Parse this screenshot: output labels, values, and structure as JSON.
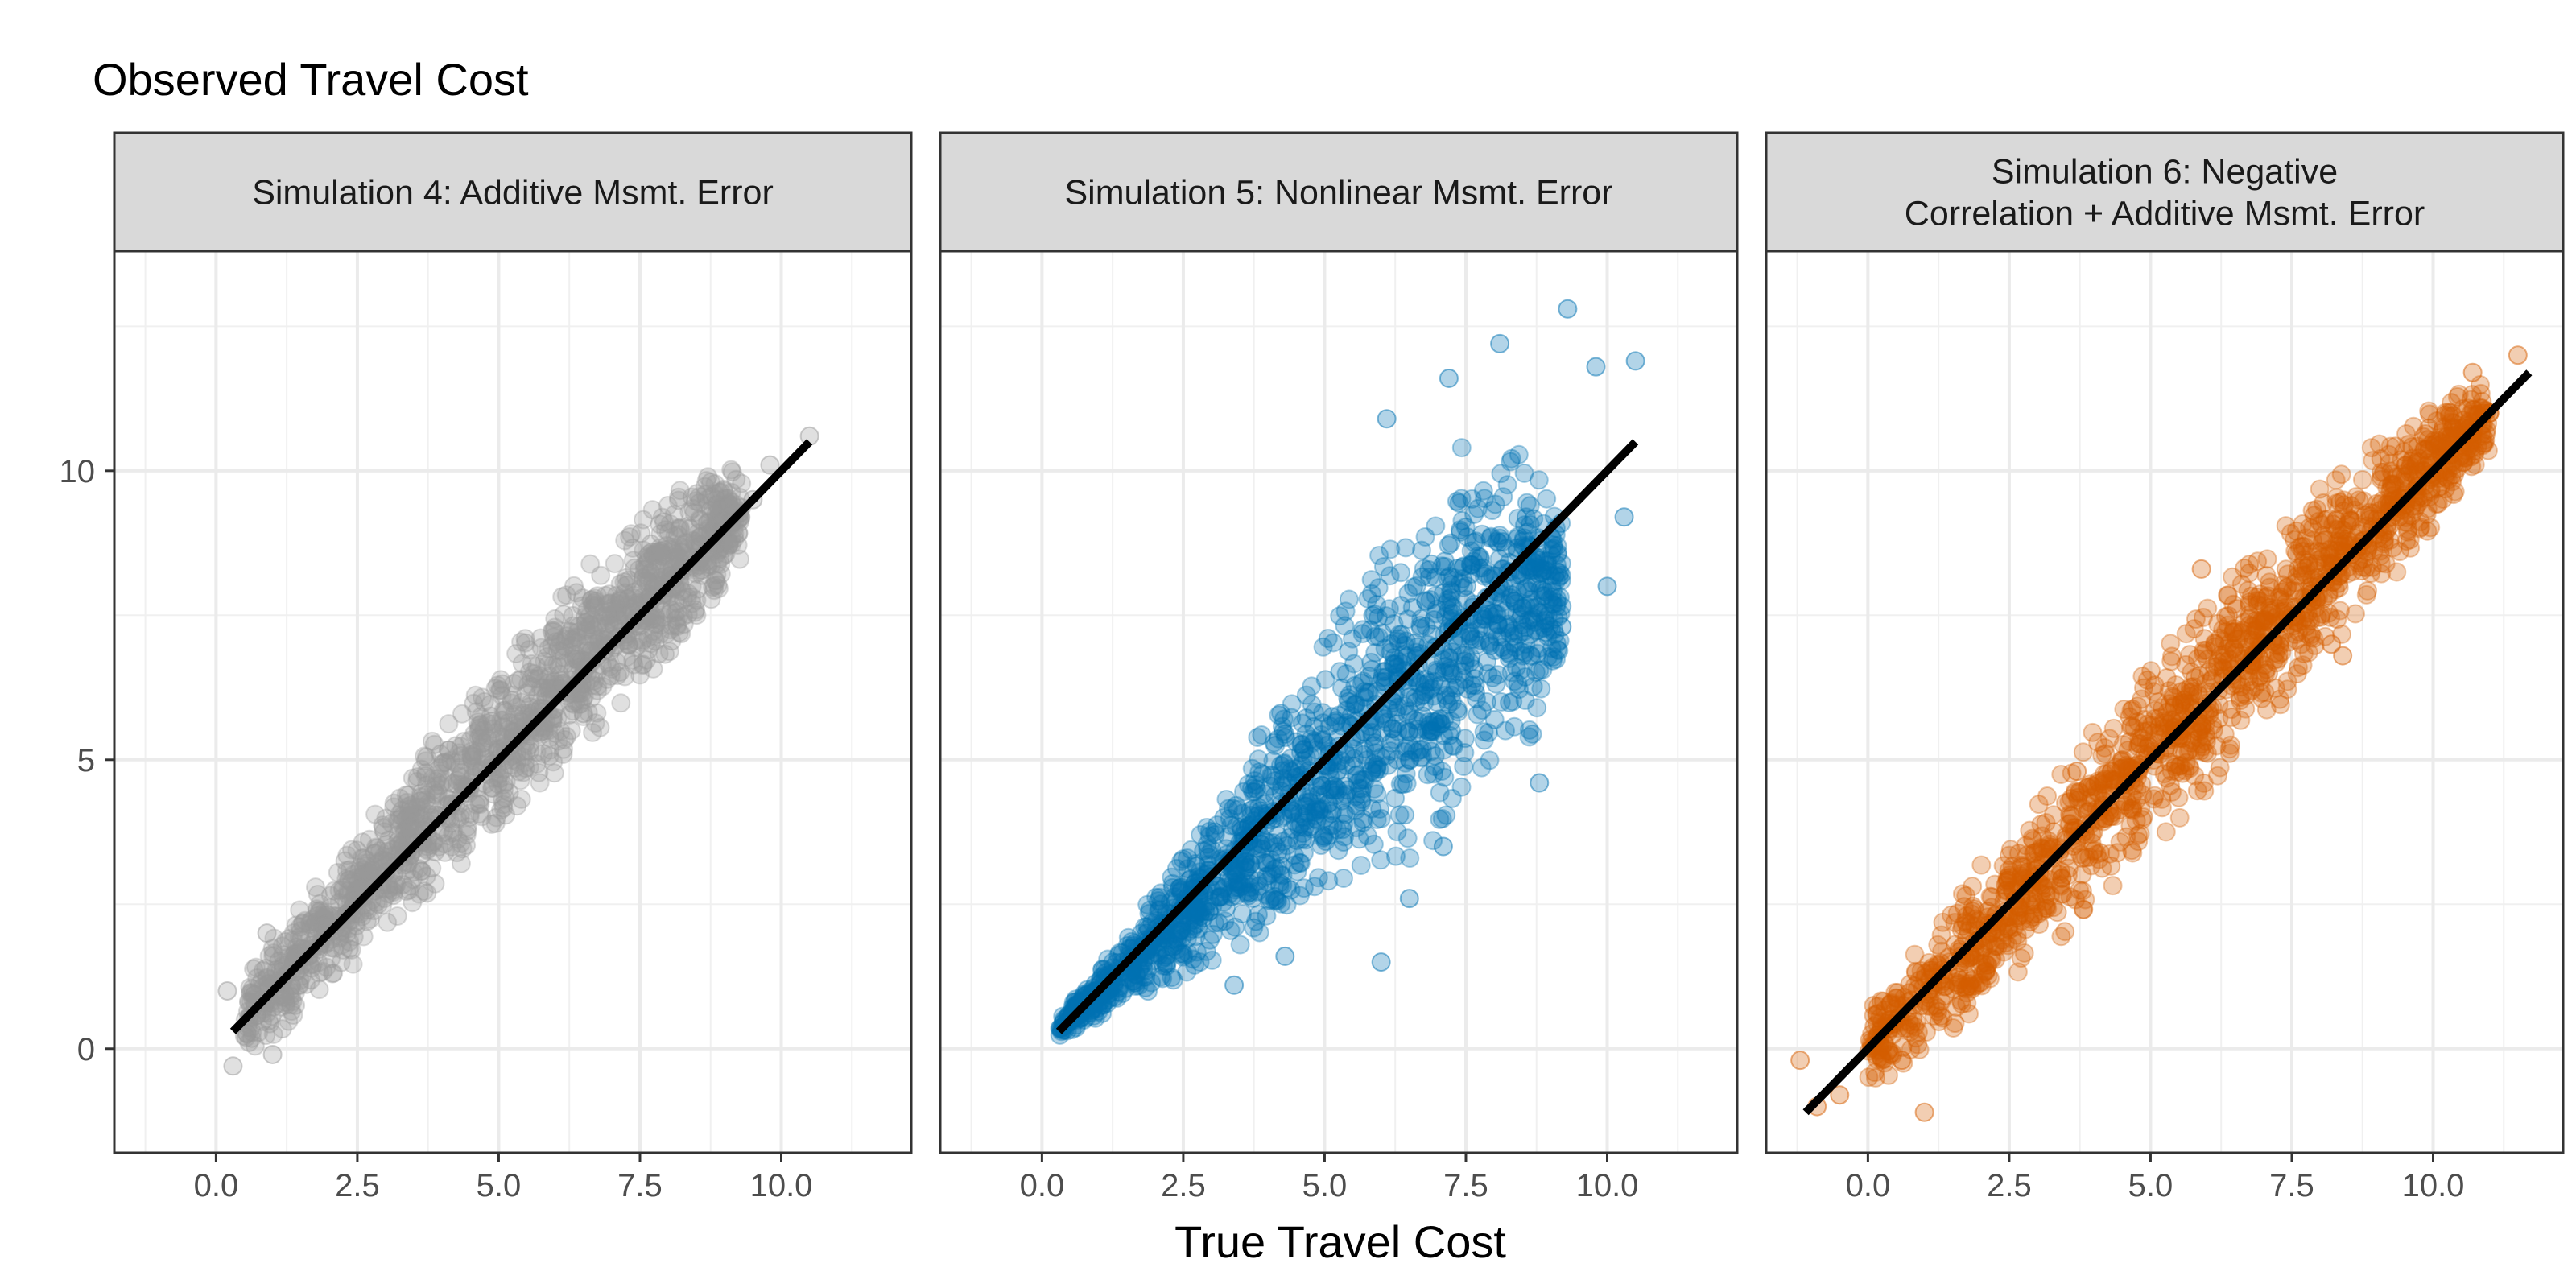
{
  "chart_data": {
    "type": "scatter",
    "y_axis_title": "Observed Travel Cost",
    "x_axis_title": "True Travel Cost",
    "xlim": [
      -1.8,
      12.3
    ],
    "ylim": [
      -1.8,
      13.8
    ],
    "x_ticks": [
      0.0,
      2.5,
      5.0,
      7.5,
      10.0
    ],
    "x_tick_labels": [
      "0.0",
      "2.5",
      "5.0",
      "7.5",
      "10.0"
    ],
    "y_ticks": [
      0,
      5,
      10
    ],
    "y_tick_labels": [
      "0",
      "5",
      "10"
    ],
    "grid": true,
    "panels": [
      {
        "strip_lines": [
          "Simulation 4: Additive Msmt. Error"
        ],
        "color": "#999999",
        "fit_line": [
          [
            0.3,
            0.3
          ],
          [
            10.5,
            10.5
          ]
        ],
        "cloud": [
          {
            "x": 0.5,
            "y_low": -0.2,
            "y_high": 1.3
          },
          {
            "x": 2.0,
            "y_low": 1.0,
            "y_high": 3.1
          },
          {
            "x": 3.5,
            "y_low": 2.4,
            "y_high": 5.0
          },
          {
            "x": 5.0,
            "y_low": 3.8,
            "y_high": 6.7
          },
          {
            "x": 6.5,
            "y_low": 5.2,
            "y_high": 8.3
          },
          {
            "x": 8.0,
            "y_low": 6.8,
            "y_high": 9.6
          },
          {
            "x": 9.3,
            "y_low": 8.4,
            "y_high": 10.2
          }
        ],
        "outliers": [
          {
            "x": 0.3,
            "y": -0.3
          },
          {
            "x": 0.2,
            "y": 1.0
          },
          {
            "x": 0.9,
            "y": 2.0
          },
          {
            "x": 1.0,
            "y": -0.1
          },
          {
            "x": 9.8,
            "y": 10.1
          },
          {
            "x": 10.5,
            "y": 10.6
          },
          {
            "x": 9.5,
            "y": 9.5
          },
          {
            "x": 8.5,
            "y": 8.7
          },
          {
            "x": 6.5,
            "y": 5.8
          }
        ]
      },
      {
        "strip_lines": [
          "Simulation 5: Nonlinear Msmt. Error"
        ],
        "color": "#0072B2",
        "fit_line": [
          [
            0.3,
            0.3
          ],
          [
            10.5,
            10.5
          ]
        ],
        "cloud": [
          {
            "x": 0.3,
            "y_low": 0.2,
            "y_high": 0.5
          },
          {
            "x": 2.0,
            "y_low": 1.0,
            "y_high": 2.7
          },
          {
            "x": 3.5,
            "y_low": 1.7,
            "y_high": 4.9
          },
          {
            "x": 5.0,
            "y_low": 2.5,
            "y_high": 7.3
          },
          {
            "x": 6.5,
            "y_low": 3.2,
            "y_high": 9.3
          },
          {
            "x": 7.5,
            "y_low": 4.0,
            "y_high": 10.6
          },
          {
            "x": 8.5,
            "y_low": 5.0,
            "y_high": 10.3
          },
          {
            "x": 9.2,
            "y_low": 6.5,
            "y_high": 9.3
          }
        ],
        "outliers": [
          {
            "x": 9.3,
            "y": 12.8
          },
          {
            "x": 8.1,
            "y": 12.2
          },
          {
            "x": 10.5,
            "y": 11.9
          },
          {
            "x": 9.8,
            "y": 11.8
          },
          {
            "x": 7.2,
            "y": 11.6
          },
          {
            "x": 10.3,
            "y": 9.2
          },
          {
            "x": 10.0,
            "y": 8.0
          },
          {
            "x": 9.2,
            "y": 7.3
          },
          {
            "x": 8.8,
            "y": 4.6
          },
          {
            "x": 6.0,
            "y": 1.5
          },
          {
            "x": 4.3,
            "y": 1.6
          },
          {
            "x": 3.4,
            "y": 1.1
          },
          {
            "x": 7.1,
            "y": 3.5
          },
          {
            "x": 6.5,
            "y": 2.6
          },
          {
            "x": 6.1,
            "y": 10.9
          }
        ]
      },
      {
        "strip_lines": [
          "Simulation 6: Negative",
          "Correlation + Additive Msmt. Error"
        ],
        "color": "#D55E00",
        "fit_line": [
          [
            -1.1,
            -1.1
          ],
          [
            11.7,
            11.7
          ]
        ],
        "cloud": [
          {
            "x": 0.0,
            "y_low": -0.9,
            "y_high": 0.7
          },
          {
            "x": 2.0,
            "y_low": 0.6,
            "y_high": 3.2
          },
          {
            "x": 4.0,
            "y_low": 2.4,
            "y_high": 5.5
          },
          {
            "x": 6.0,
            "y_low": 4.5,
            "y_high": 7.8
          },
          {
            "x": 8.0,
            "y_low": 6.7,
            "y_high": 9.7
          },
          {
            "x": 9.5,
            "y_low": 8.4,
            "y_high": 10.9
          },
          {
            "x": 11.0,
            "y_low": 10.3,
            "y_high": 11.6
          }
        ],
        "outliers": [
          {
            "x": -1.2,
            "y": -0.2
          },
          {
            "x": -0.9,
            "y": -1.0
          },
          {
            "x": -0.5,
            "y": -0.8
          },
          {
            "x": 0.4,
            "y": 0.5
          },
          {
            "x": 1.0,
            "y": -1.1
          },
          {
            "x": 0.6,
            "y": -0.2
          },
          {
            "x": 11.5,
            "y": 12.0
          },
          {
            "x": 11.0,
            "y": 11.0
          },
          {
            "x": 10.7,
            "y": 11.7
          },
          {
            "x": 8.2,
            "y": 7.0
          },
          {
            "x": 8.4,
            "y": 6.8
          },
          {
            "x": 3.7,
            "y": 4.8
          },
          {
            "x": 5.9,
            "y": 8.3
          }
        ]
      }
    ]
  }
}
